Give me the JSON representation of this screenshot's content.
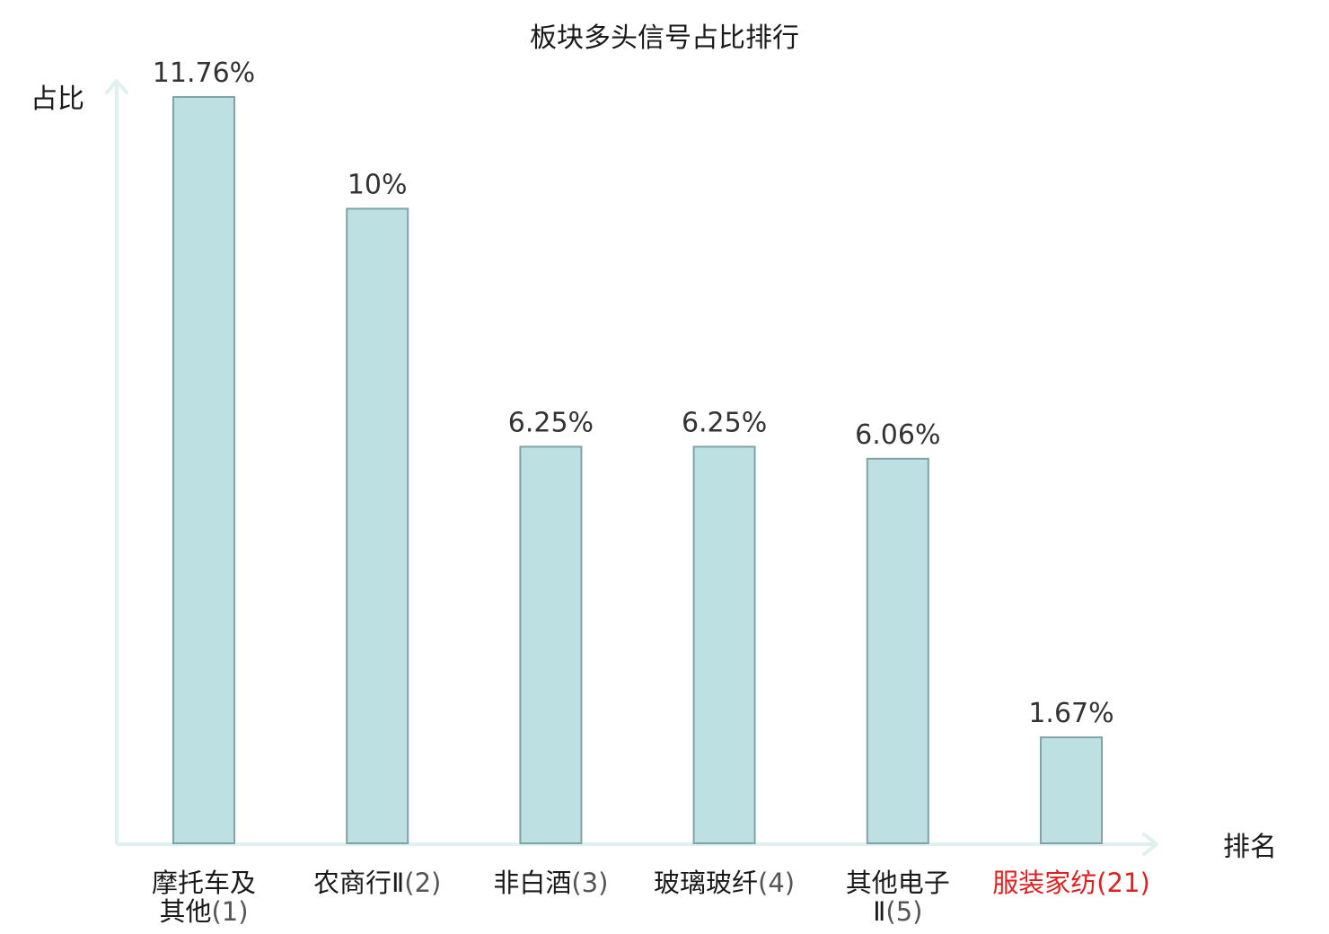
{
  "chart_data": {
    "type": "bar",
    "title": "板块多头信号占比排行",
    "xlabel": "排名",
    "ylabel": "占比",
    "ylim": [
      0,
      12.5
    ],
    "grid": false,
    "categories": [
      {
        "lines": [
          "摩托车及",
          "其他"
        ],
        "rank": "(1)",
        "highlight": false
      },
      {
        "lines": [
          "农商行Ⅱ"
        ],
        "rank": "(2)",
        "highlight": false
      },
      {
        "lines": [
          "非白酒"
        ],
        "rank": "(3)",
        "highlight": false
      },
      {
        "lines": [
          "玻璃玻纤"
        ],
        "rank": "(4)",
        "highlight": false
      },
      {
        "lines": [
          "其他电子",
          "Ⅱ"
        ],
        "rank": "(5)",
        "highlight": false
      },
      {
        "lines": [
          "服装家纺"
        ],
        "rank": "(21)",
        "highlight": true
      }
    ],
    "values": [
      11.76,
      10,
      6.25,
      6.25,
      6.06,
      1.67
    ],
    "value_labels": [
      "11.76%",
      "10%",
      "6.25%",
      "6.25%",
      "6.06%",
      "1.67%"
    ],
    "colors": {
      "bar_fill": "#bde0e3",
      "bar_stroke": "#7fa3a8",
      "axis": "#dff1ee",
      "highlight_text": "#e02020"
    }
  }
}
